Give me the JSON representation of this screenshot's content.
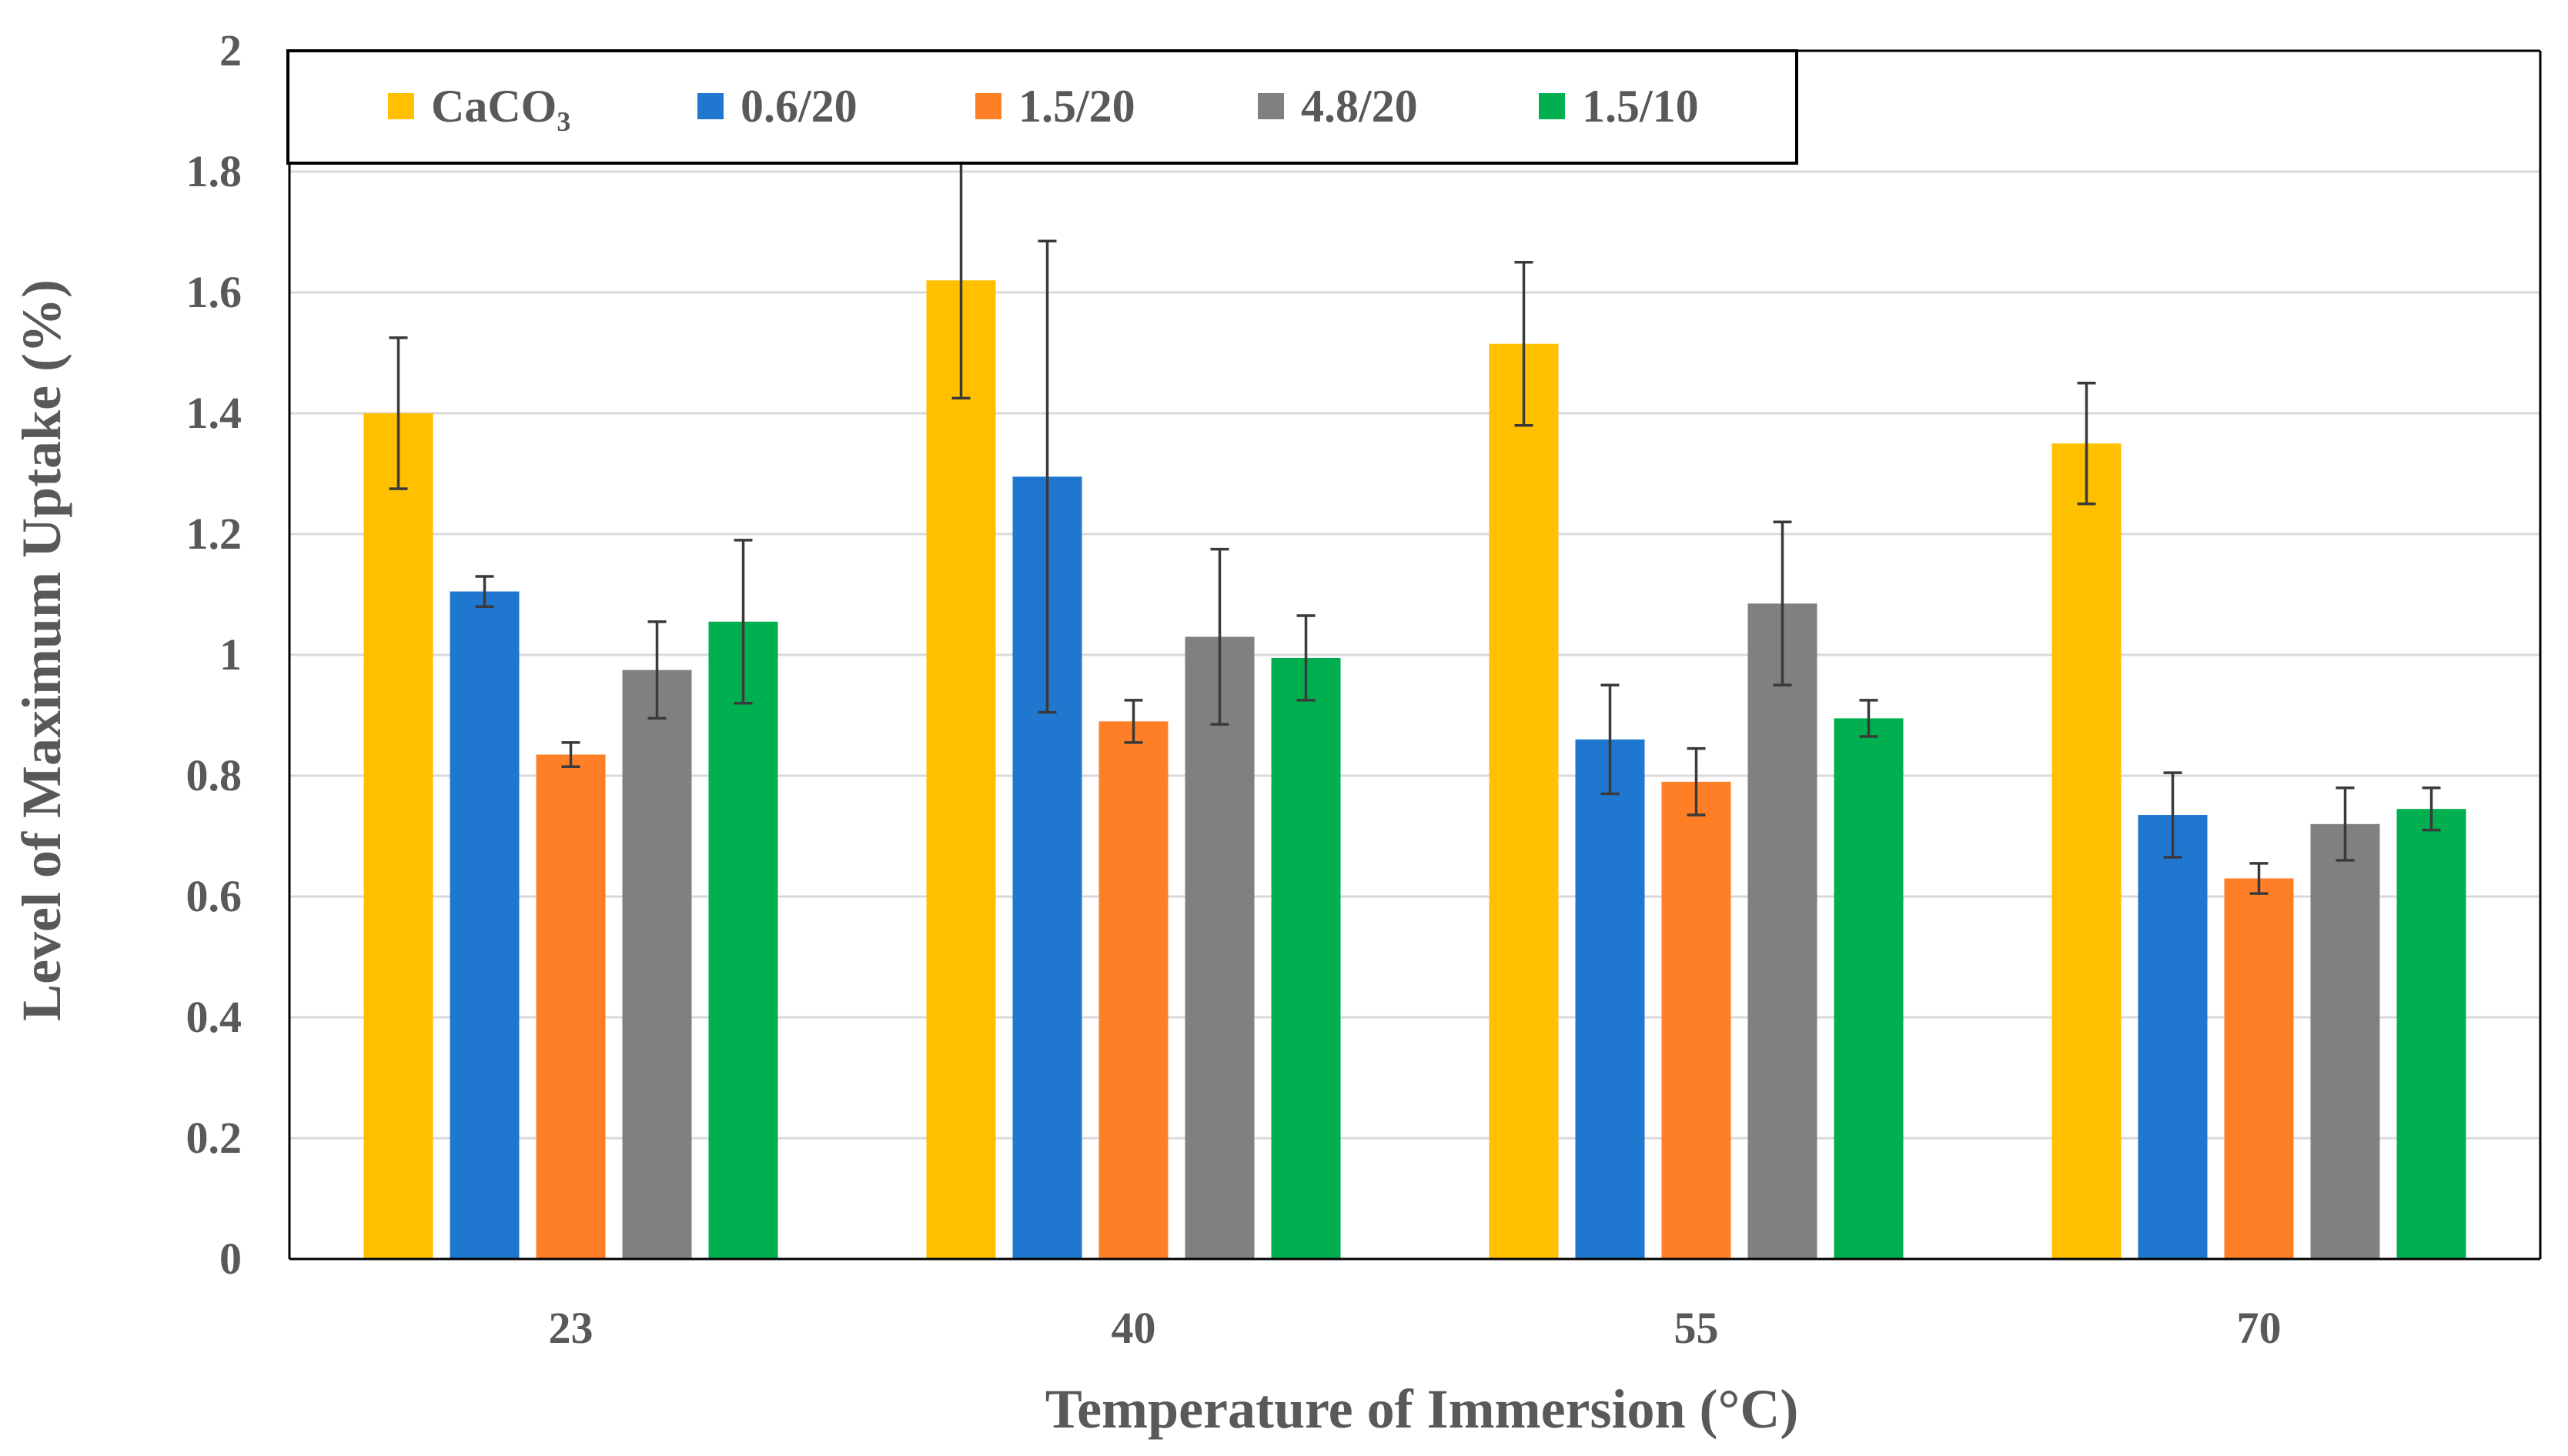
{
  "chart_data": {
    "type": "bar",
    "title": "",
    "xlabel": "Temperature of Immersion (°C)",
    "ylabel": "Level of Maximum Uptake (%)",
    "ylim": [
      0,
      2
    ],
    "yticks": [
      "0",
      "0.2",
      "0.4",
      "0.6",
      "0.8",
      "1",
      "1.2",
      "1.4",
      "1.6",
      "1.8",
      "2"
    ],
    "grid": true,
    "legend_position": "top",
    "categories": [
      "23",
      "40",
      "55",
      "70"
    ],
    "series": [
      {
        "name": "CaCO₃",
        "color": "#FFC000",
        "values": [
          1.4,
          1.62,
          1.515,
          1.35
        ],
        "errors": [
          0.125,
          0.195,
          0.135,
          0.1
        ]
      },
      {
        "name": "0.6/20",
        "color": "#1F77D0",
        "values": [
          1.105,
          1.295,
          0.86,
          0.735
        ],
        "errors": [
          0.025,
          0.39,
          0.09,
          0.07
        ]
      },
      {
        "name": "1.5/20",
        "color": "#FF7F27",
        "values": [
          0.835,
          0.89,
          0.79,
          0.63
        ],
        "errors": [
          0.02,
          0.035,
          0.055,
          0.025
        ]
      },
      {
        "name": "4.8/20",
        "color": "#808080",
        "values": [
          0.975,
          1.03,
          1.085,
          0.72
        ],
        "errors": [
          0.08,
          0.145,
          0.135,
          0.06
        ]
      },
      {
        "name": "1.5/10",
        "color": "#00B050",
        "values": [
          1.055,
          0.995,
          0.895,
          0.745
        ],
        "errors": [
          0.135,
          0.07,
          0.03,
          0.035
        ]
      }
    ]
  }
}
